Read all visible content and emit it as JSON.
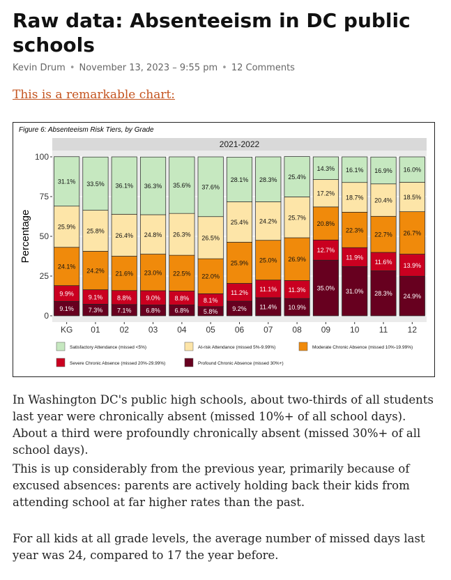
{
  "article": {
    "title": "Raw data: Absenteeism in DC public schools",
    "author": "Kevin Drum",
    "date": "November 13, 2023 – 9:55 pm",
    "comments": "12 Comments",
    "intro_link": "This is a remarkable chart:",
    "paragraphs": [
      "In Washington DC's public high schools, about two-thirds of all students last year were chronically absent (missed 10%+ of all school days). About a third were profoundly chronically absent (missed 30%+ of all school days).",
      "This is up considerably from the previous year, primarily because of excused absences: parents are actively holding back their kids from attending school at far higher rates than the past.",
      "For all kids at all grade levels, the average number of missed days last year was 24, compared to 17 the year before."
    ]
  },
  "chart_data": {
    "type": "bar",
    "stacked": true,
    "title": "Figure 6: Absenteeism Risk Tiers, by Grade",
    "facet_label": "2021-2022",
    "ylabel": "Percentage",
    "xlabel": "",
    "ylim": [
      0,
      100
    ],
    "yticks": [
      "0",
      "25",
      "50",
      "75",
      "100"
    ],
    "categories": [
      "KG",
      "01",
      "02",
      "03",
      "04",
      "05",
      "06",
      "07",
      "08",
      "09",
      "10",
      "11",
      "12"
    ],
    "series": [
      {
        "name": "Profound Chronic Absence (missed 30%+)",
        "color": "#67001f",
        "values": [
          9.1,
          7.3,
          7.1,
          6.8,
          6.8,
          5.8,
          9.2,
          11.4,
          10.9,
          35.0,
          31.0,
          28.3,
          24.9
        ],
        "labels": [
          "9.1%",
          "7.3%",
          "7.1%",
          "6.8%",
          "6.8%",
          "5.8%",
          "9.2%",
          "11.4%",
          "10.9%",
          "35.0%",
          "31.0%",
          "28.3%",
          "24.9%"
        ]
      },
      {
        "name": "Severe Chronic Absence (missed 20%-29.99%)",
        "color": "#ca0020",
        "values": [
          9.9,
          9.1,
          8.8,
          9.0,
          8.8,
          8.1,
          11.2,
          11.1,
          11.3,
          12.7,
          11.9,
          11.6,
          13.9
        ],
        "labels": [
          "9.9%",
          "9.1%",
          "8.8%",
          "9.0%",
          "8.8%",
          "8.1%",
          "11.2%",
          "11.1%",
          "11.3%",
          "12.7%",
          "11.9%",
          "11.6%",
          "13.9%"
        ]
      },
      {
        "name": "Moderate Chronic Absence (missed 10%-19.99%)",
        "color": "#f08a0b",
        "values": [
          24.1,
          24.2,
          21.6,
          23.0,
          22.5,
          22.0,
          25.9,
          25.0,
          26.9,
          20.8,
          22.3,
          22.7,
          26.7
        ],
        "labels": [
          "24.1%",
          "24.2%",
          "21.6%",
          "23.0%",
          "22.5%",
          "22.0%",
          "25.9%",
          "25.0%",
          "26.9%",
          "20.8%",
          "22.3%",
          "22.7%",
          "26.7%"
        ]
      },
      {
        "name": "At-risk Attendance (missed 5%-9.99%)",
        "color": "#fde5a8",
        "values": [
          25.9,
          25.8,
          26.4,
          24.8,
          26.3,
          26.5,
          25.4,
          24.2,
          25.7,
          17.2,
          18.7,
          20.4,
          18.5
        ],
        "labels": [
          "25.9%",
          "25.8%",
          "26.4%",
          "24.8%",
          "26.3%",
          "26.5%",
          "25.4%",
          "24.2%",
          "25.7%",
          "17.2%",
          "18.7%",
          "20.4%",
          "18.5%"
        ]
      },
      {
        "name": "Satisfactory Attendance (missed <5%)",
        "color": "#c6e8c0",
        "values": [
          31.1,
          33.5,
          36.1,
          36.3,
          35.6,
          37.6,
          28.1,
          28.3,
          25.4,
          14.3,
          16.1,
          16.9,
          16.0
        ],
        "labels": [
          "31.1%",
          "33.5%",
          "36.1%",
          "36.3%",
          "35.6%",
          "37.6%",
          "28.1%",
          "28.3%",
          "25.4%",
          "14.3%",
          "16.1%",
          "16.9%",
          "16.0%"
        ]
      }
    ],
    "legend": {
      "position": "bottom",
      "items": [
        {
          "label": "Satisfactory Attendance (missed <5%)",
          "color": "#c6e8c0"
        },
        {
          "label": "At-risk Attendance (missed 5%-9.99%)",
          "color": "#fde5a8"
        },
        {
          "label": "Moderate Chronic Absence (missed 10%-19.99%)",
          "color": "#f08a0b"
        },
        {
          "label": "Severe Chronic Absence (missed 20%-29.99%)",
          "color": "#ca0020"
        },
        {
          "label": "Profound Chronic Absence (missed 30%+)",
          "color": "#67001f"
        }
      ]
    },
    "grid": true,
    "panel_background": "#ebebeb"
  }
}
